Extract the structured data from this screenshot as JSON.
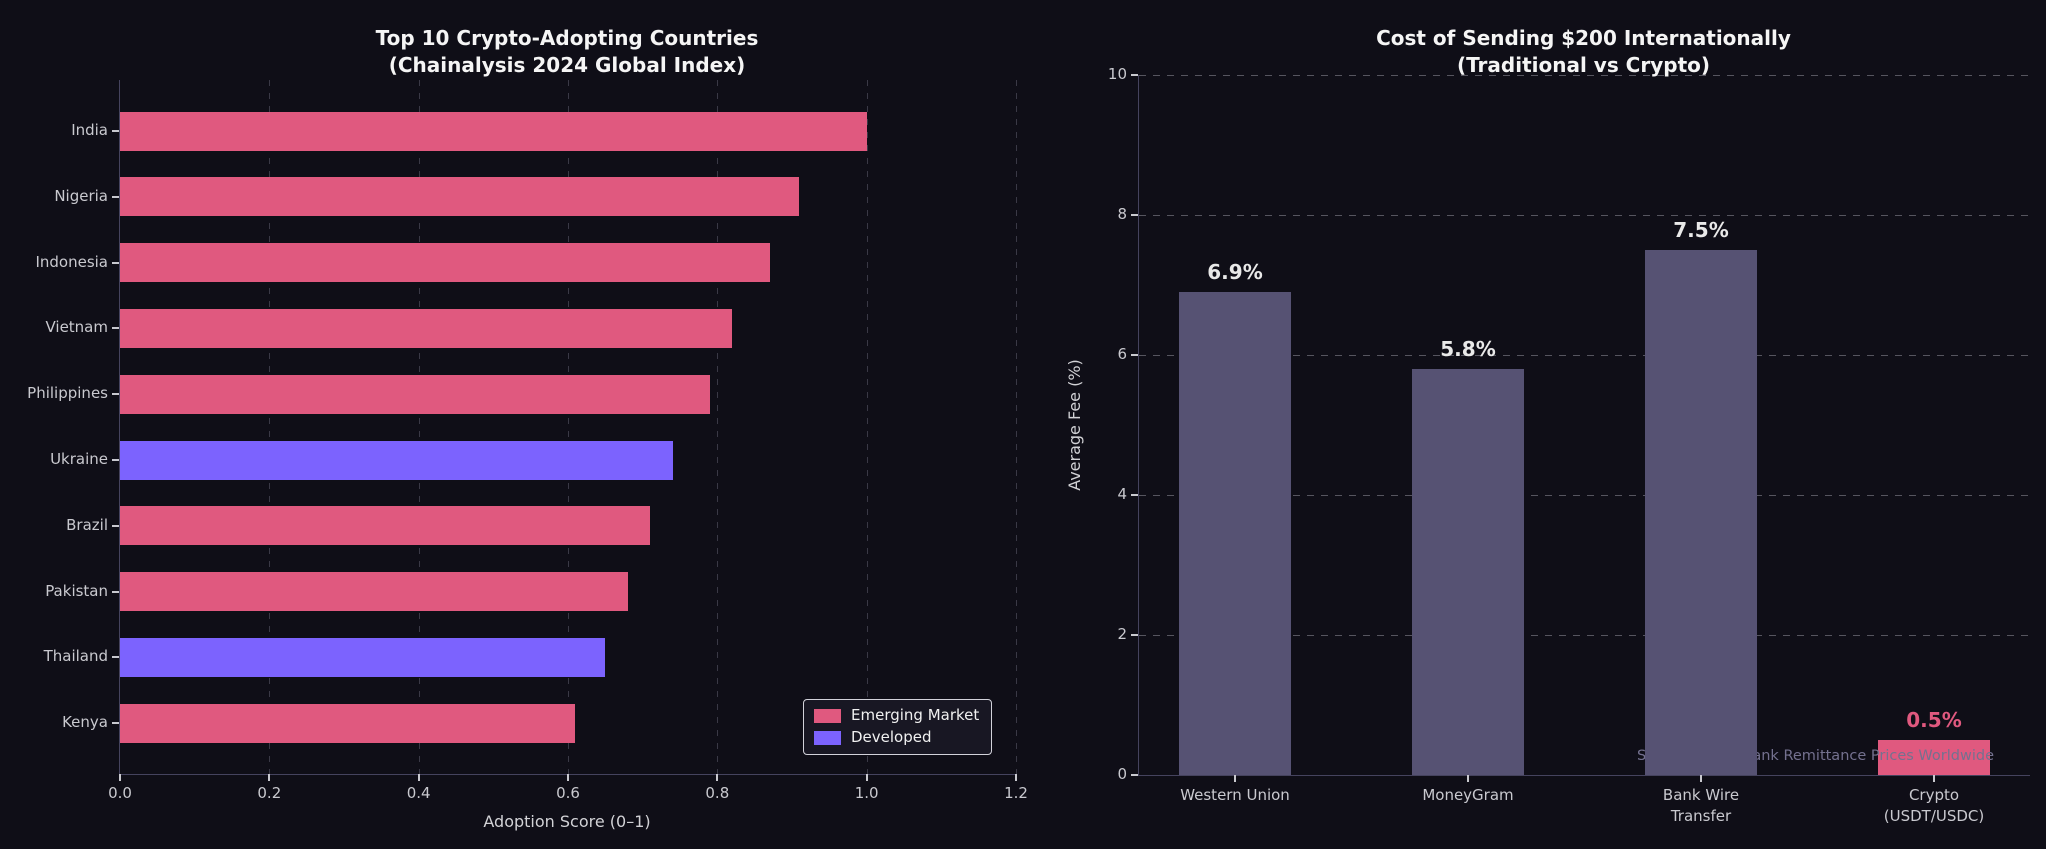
{
  "page": {
    "background": "#0f0e17"
  },
  "chart_data": [
    {
      "type": "barh",
      "title": "Top 10 Crypto-Adopting Countries\n(Chainalysis 2024 Global Index)",
      "categories": [
        "India",
        "Nigeria",
        "Indonesia",
        "Vietnam",
        "Philippines",
        "Ukraine",
        "Brazil",
        "Pakistan",
        "Thailand",
        "Kenya"
      ],
      "values": [
        1.0,
        0.91,
        0.87,
        0.82,
        0.79,
        0.74,
        0.71,
        0.68,
        0.65,
        0.61
      ],
      "market_type": [
        "emerging",
        "emerging",
        "emerging",
        "emerging",
        "emerging",
        "developed",
        "emerging",
        "emerging",
        "developed",
        "emerging"
      ],
      "colors": {
        "emerging": "#e0597f",
        "developed": "#7c63fe"
      },
      "legend": [
        {
          "label": "Emerging Market",
          "color": "#e0597f"
        },
        {
          "label": "Developed",
          "color": "#7c63fe"
        }
      ],
      "legend_position": "lower right",
      "xlabel": "Adoption Score (0–1)",
      "xticks": [
        "0.0",
        "0.2",
        "0.4",
        "0.6",
        "0.8",
        "1.0",
        "1.2"
      ],
      "xlim": [
        0,
        1.2
      ],
      "grid": "x, dashed"
    },
    {
      "type": "bar",
      "title": "Cost of Sending $200 Internationally\n(Traditional vs Crypto)",
      "categories": [
        "Western Union",
        "MoneyGram",
        "Bank Wire\nTransfer",
        "Crypto\n(USDT/USDC)"
      ],
      "values": [
        6.9,
        5.8,
        7.5,
        0.5
      ],
      "bar_labels": [
        "6.9%",
        "5.8%",
        "7.5%",
        "0.5%"
      ],
      "bar_colors": [
        "#565273",
        "#565273",
        "#565273",
        "#e0597f"
      ],
      "bar_label_colors": [
        "#e9e9e9",
        "#e9e9e9",
        "#e9e9e9",
        "#e0597f"
      ],
      "ylabel": "Average Fee (%)",
      "yticks": [
        0,
        2,
        4,
        6,
        8,
        10
      ],
      "ylim": [
        0,
        10
      ],
      "annotation": "Source: World Bank Remittance Prices Worldwide",
      "grid": "y, dashed"
    }
  ]
}
